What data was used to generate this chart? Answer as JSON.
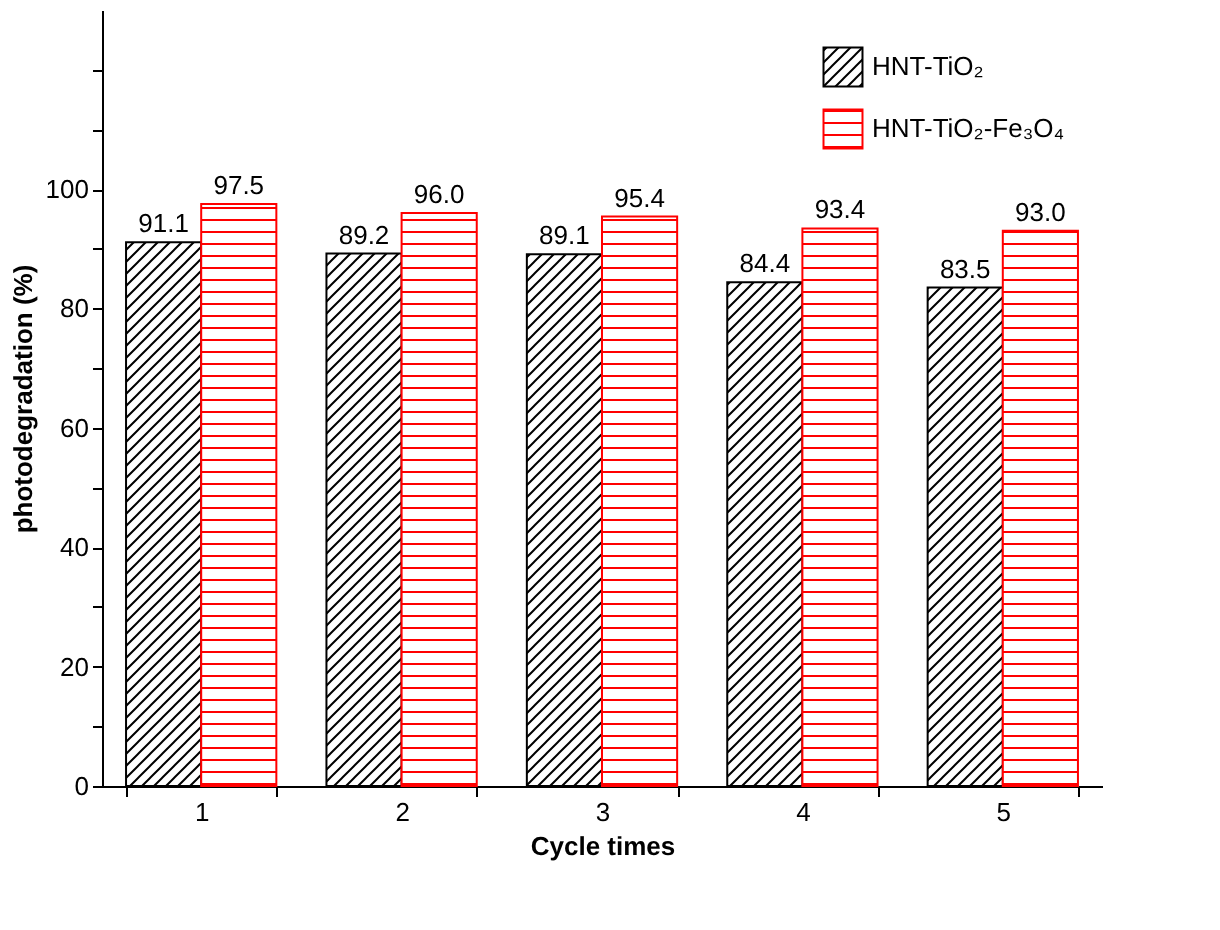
{
  "chart_data": {
    "type": "bar",
    "xlabel": "Cycle times",
    "ylabel": "photodegradation (%)",
    "categories": [
      "1",
      "2",
      "3",
      "4",
      "5"
    ],
    "series": [
      {
        "name": "HNT-TiO₂",
        "color": "#000000",
        "values": [
          91.1,
          89.2,
          89.1,
          84.4,
          83.5
        ],
        "value_labels": [
          "91.1",
          "89.2",
          "89.1",
          "84.4",
          "83.5"
        ]
      },
      {
        "name": "HNT-TiO₂-Fe₃O₄",
        "color": "#ff0000",
        "values": [
          97.5,
          96.0,
          95.4,
          93.4,
          93.0
        ],
        "value_labels": [
          "97.5",
          "96.0",
          "95.4",
          "93.4",
          "93.0"
        ]
      }
    ],
    "ylim": [
      0,
      130
    ],
    "yticks": [
      0,
      {
        "value": 10,
        "label": null
      },
      20,
      {
        "value": 30,
        "label": null
      },
      40,
      {
        "value": 50,
        "label": null
      },
      60,
      {
        "value": 70,
        "label": null
      },
      80,
      {
        "value": 90,
        "label": null
      },
      100,
      {
        "value": 110,
        "label": null
      },
      {
        "value": 120,
        "label": null
      }
    ],
    "grid": false,
    "legend": "top right"
  }
}
